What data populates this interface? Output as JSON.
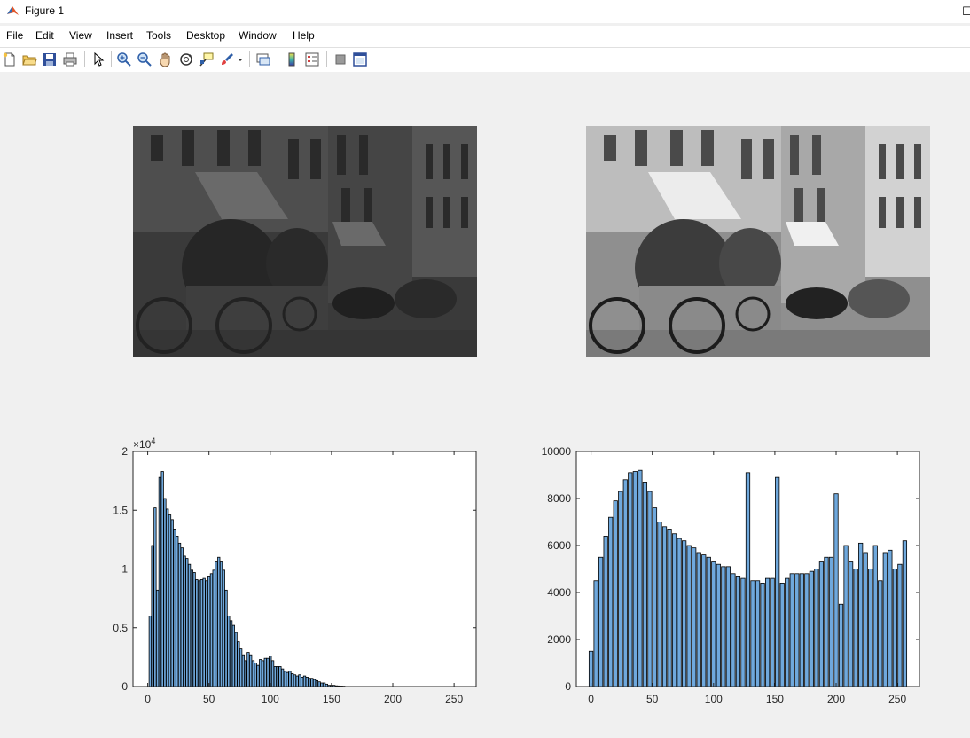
{
  "window": {
    "title": "Figure 1",
    "minimize_glyph": "—",
    "maximize_glyph": "☐"
  },
  "menu": {
    "items": [
      "File",
      "Edit",
      "View",
      "Insert",
      "Tools",
      "Desktop",
      "Window",
      "Help"
    ]
  },
  "toolbar": {
    "icons": [
      "new-figure-icon",
      "open-file-icon",
      "save-icon",
      "print-icon",
      "edit-plot-arrow-icon",
      "zoom-in-icon",
      "zoom-out-icon",
      "pan-hand-icon",
      "rotate-3d-icon",
      "data-cursor-icon",
      "brush-icon",
      "brush-dropdown-icon",
      "link-plot-icon",
      "insert-colorbar-icon",
      "insert-legend-icon",
      "hide-plot-tools-icon",
      "show-plot-tools-icon"
    ]
  },
  "images": {
    "left": {
      "tone": "dark"
    },
    "right": {
      "tone": "equalized"
    }
  },
  "chart_data": [
    {
      "type": "bar",
      "exponent_label": "×10",
      "exponent_power": "4",
      "xticks": [
        "0",
        "50",
        "100",
        "150",
        "200",
        "250"
      ],
      "yticks": [
        "0",
        "0.5",
        "1",
        "1.5",
        "2"
      ],
      "xlim": [
        -12,
        268
      ],
      "ylim": [
        0,
        20000
      ],
      "bar_color": "#6fa8dc",
      "x": [
        2,
        4,
        6,
        8,
        10,
        12,
        14,
        16,
        18,
        20,
        22,
        24,
        26,
        28,
        30,
        32,
        34,
        36,
        38,
        40,
        42,
        44,
        46,
        48,
        50,
        52,
        54,
        56,
        58,
        60,
        62,
        64,
        66,
        68,
        70,
        72,
        74,
        76,
        78,
        80,
        82,
        84,
        86,
        88,
        90,
        92,
        94,
        96,
        98,
        100,
        102,
        104,
        106,
        108,
        110,
        112,
        114,
        116,
        118,
        120,
        122,
        124,
        126,
        128,
        130,
        132,
        134,
        136,
        138,
        140,
        142,
        144,
        146,
        148,
        150,
        152,
        154,
        156,
        158,
        160
      ],
      "values": [
        6000,
        12000,
        15200,
        8200,
        17800,
        18300,
        16000,
        15100,
        14600,
        14200,
        13400,
        12800,
        12200,
        11800,
        11100,
        10900,
        10400,
        9900,
        9700,
        9100,
        9000,
        9100,
        9200,
        9000,
        9400,
        9600,
        9900,
        10600,
        11000,
        10600,
        9900,
        8200,
        6000,
        5600,
        5200,
        4600,
        3800,
        3200,
        2700,
        2200,
        2900,
        2700,
        2200,
        2000,
        1800,
        2300,
        2200,
        2400,
        2400,
        2600,
        2200,
        1700,
        1700,
        1700,
        1500,
        1300,
        1200,
        1300,
        1100,
        1000,
        900,
        1000,
        800,
        900,
        800,
        700,
        700,
        600,
        500,
        400,
        300,
        300,
        200,
        100,
        100,
        100,
        60,
        50,
        40,
        30
      ],
      "series_line_first_bar_alt": 0
    },
    {
      "type": "bar",
      "xticks": [
        "0",
        "50",
        "100",
        "150",
        "200",
        "250"
      ],
      "yticks": [
        "0",
        "2000",
        "4000",
        "6000",
        "8000",
        "10000"
      ],
      "xlim": [
        -12,
        268
      ],
      "ylim": [
        0,
        10000
      ],
      "bar_color": "#6fa8dc",
      "x": [
        0,
        4,
        8,
        12,
        16,
        20,
        24,
        28,
        32,
        36,
        40,
        44,
        48,
        52,
        56,
        60,
        64,
        68,
        72,
        76,
        80,
        84,
        88,
        92,
        96,
        100,
        104,
        108,
        112,
        116,
        120,
        124,
        128,
        132,
        136,
        140,
        144,
        148,
        152,
        156,
        160,
        164,
        168,
        172,
        176,
        180,
        184,
        188,
        192,
        196,
        200,
        204,
        208,
        212,
        216,
        220,
        224,
        228,
        232,
        236,
        240,
        244,
        248,
        252,
        256
      ],
      "values": [
        1500,
        4500,
        5500,
        6400,
        7200,
        7900,
        8300,
        8800,
        9100,
        9150,
        9200,
        8700,
        8300,
        7600,
        7000,
        6800,
        6700,
        6500,
        6300,
        6200,
        6000,
        5900,
        5700,
        5600,
        5500,
        5300,
        5200,
        5100,
        5100,
        4800,
        4700,
        4600,
        9100,
        4500,
        4500,
        4400,
        4600,
        4600,
        8900,
        4400,
        4600,
        4800,
        4800,
        4800,
        4800,
        4900,
        5000,
        5300,
        5500,
        5500,
        8200,
        3500,
        6000,
        5300,
        5000,
        6100,
        5700,
        5000,
        6000,
        4500,
        5700,
        5800,
        5000,
        5200,
        6200
      ]
    }
  ]
}
